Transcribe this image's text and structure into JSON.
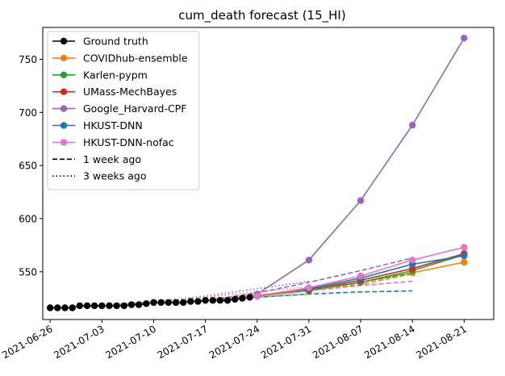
{
  "chart_data": {
    "type": "line",
    "title": "cum_death forecast (15_HI)",
    "xlabel": "",
    "ylabel": "",
    "x_ticks": [
      "2021-06-26",
      "2021-07-03",
      "2021-07-10",
      "2021-07-17",
      "2021-07-24",
      "2021-07-31",
      "2021-08-07",
      "2021-08-14",
      "2021-08-21"
    ],
    "y_ticks": [
      550,
      600,
      650,
      700,
      750
    ],
    "xlim": [
      "2021-06-25",
      "2021-08-25"
    ],
    "ylim": [
      505,
      780
    ],
    "legend_position": "upper-left",
    "grid": false,
    "series": [
      {
        "name": "Ground truth",
        "color": "#000000",
        "style": "solid",
        "marker": true,
        "points": [
          [
            "2021-06-26",
            516
          ],
          [
            "2021-06-27",
            516
          ],
          [
            "2021-06-28",
            516
          ],
          [
            "2021-06-29",
            516
          ],
          [
            "2021-06-30",
            518
          ],
          [
            "2021-07-01",
            518
          ],
          [
            "2021-07-02",
            518
          ],
          [
            "2021-07-03",
            518
          ],
          [
            "2021-07-04",
            518
          ],
          [
            "2021-07-05",
            518
          ],
          [
            "2021-07-06",
            518
          ],
          [
            "2021-07-07",
            519
          ],
          [
            "2021-07-08",
            519
          ],
          [
            "2021-07-09",
            520
          ],
          [
            "2021-07-10",
            521
          ],
          [
            "2021-07-11",
            521
          ],
          [
            "2021-07-12",
            521
          ],
          [
            "2021-07-13",
            521
          ],
          [
            "2021-07-14",
            521
          ],
          [
            "2021-07-15",
            522
          ],
          [
            "2021-07-16",
            522
          ],
          [
            "2021-07-17",
            523
          ],
          [
            "2021-07-18",
            523
          ],
          [
            "2021-07-19",
            523
          ],
          [
            "2021-07-20",
            523
          ],
          [
            "2021-07-21",
            524
          ],
          [
            "2021-07-22",
            525
          ],
          [
            "2021-07-23",
            526
          ],
          [
            "2021-07-24",
            527
          ]
        ]
      },
      {
        "name": "COVIDhub-ensemble",
        "color": "#ff7f0e",
        "style": "solid",
        "marker": true,
        "points": [
          [
            "2021-07-24",
            527
          ],
          [
            "2021-07-31",
            533
          ],
          [
            "2021-08-07",
            540
          ],
          [
            "2021-08-14",
            549
          ],
          [
            "2021-08-21",
            559
          ]
        ]
      },
      {
        "name": "Karlen-pypm",
        "color": "#2ca02c",
        "style": "solid",
        "marker": true,
        "points": [
          [
            "2021-07-24",
            527
          ],
          [
            "2021-07-31",
            532
          ],
          [
            "2021-08-07",
            540
          ],
          [
            "2021-08-14",
            551
          ],
          [
            "2021-08-21",
            566
          ]
        ]
      },
      {
        "name": "UMass-MechBayes",
        "color": "#d62728",
        "style": "solid",
        "marker": true,
        "points": [
          [
            "2021-07-24",
            527
          ],
          [
            "2021-07-31",
            533
          ],
          [
            "2021-08-07",
            542
          ],
          [
            "2021-08-14",
            553
          ],
          [
            "2021-08-21",
            567
          ]
        ]
      },
      {
        "name": "Google_Harvard-CPF",
        "color": "#9467bd",
        "style": "solid",
        "marker": true,
        "points": [
          [
            "2021-07-24",
            529
          ],
          [
            "2021-07-31",
            561
          ],
          [
            "2021-08-07",
            617
          ],
          [
            "2021-08-14",
            688
          ],
          [
            "2021-08-21",
            770
          ]
        ]
      },
      {
        "name": "HKUST-DNN",
        "color": "#1f77b4",
        "style": "solid",
        "marker": true,
        "points": [
          [
            "2021-07-24",
            527
          ],
          [
            "2021-07-31",
            534
          ],
          [
            "2021-08-07",
            544
          ],
          [
            "2021-08-14",
            557
          ],
          [
            "2021-08-21",
            565
          ]
        ]
      },
      {
        "name": "HKUST-DNN-nofac",
        "color": "#e377c2",
        "style": "solid",
        "marker": true,
        "points": [
          [
            "2021-07-24",
            527
          ],
          [
            "2021-07-31",
            535
          ],
          [
            "2021-08-07",
            546
          ],
          [
            "2021-08-14",
            561
          ],
          [
            "2021-08-21",
            573
          ]
        ]
      },
      {
        "name": "",
        "color": "#ff7f0e",
        "style": "dashed",
        "marker": false,
        "points": [
          [
            "2021-07-17",
            523
          ],
          [
            "2021-07-24",
            528
          ],
          [
            "2021-07-31",
            533
          ],
          [
            "2021-08-07",
            538
          ],
          [
            "2021-08-14",
            548
          ]
        ]
      },
      {
        "name": "",
        "color": "#2ca02c",
        "style": "dashed",
        "marker": false,
        "points": [
          [
            "2021-07-17",
            523
          ],
          [
            "2021-07-24",
            527
          ],
          [
            "2021-07-31",
            533
          ],
          [
            "2021-08-07",
            540
          ],
          [
            "2021-08-14",
            549
          ]
        ]
      },
      {
        "name": "",
        "color": "#1f77b4",
        "style": "dashed",
        "marker": false,
        "points": [
          [
            "2021-07-17",
            523
          ],
          [
            "2021-07-24",
            526
          ],
          [
            "2021-07-31",
            529
          ],
          [
            "2021-08-07",
            531
          ],
          [
            "2021-08-14",
            532
          ]
        ]
      },
      {
        "name": "",
        "color": "#9467bd",
        "style": "dashed",
        "marker": false,
        "points": [
          [
            "2021-07-17",
            523
          ],
          [
            "2021-07-24",
            530
          ],
          [
            "2021-07-31",
            540
          ],
          [
            "2021-08-07",
            551
          ],
          [
            "2021-08-14",
            563
          ]
        ]
      },
      {
        "name": "",
        "color": "#e377c2",
        "style": "dashed",
        "marker": false,
        "points": [
          [
            "2021-07-17",
            523
          ],
          [
            "2021-07-24",
            527
          ],
          [
            "2021-07-31",
            532
          ],
          [
            "2021-08-07",
            537
          ],
          [
            "2021-08-14",
            541
          ]
        ]
      },
      {
        "name": "",
        "color": "#9467bd",
        "style": "dotted",
        "marker": false,
        "points": [
          [
            "2021-07-03",
            518
          ],
          [
            "2021-07-10",
            522
          ],
          [
            "2021-07-17",
            527
          ],
          [
            "2021-07-24",
            534
          ],
          [
            "2021-07-31",
            541
          ]
        ]
      },
      {
        "name": "",
        "color": "#ff7f0e",
        "style": "dotted",
        "marker": false,
        "points": [
          [
            "2021-07-03",
            518
          ],
          [
            "2021-07-10",
            521
          ],
          [
            "2021-07-17",
            524
          ],
          [
            "2021-07-24",
            528
          ],
          [
            "2021-07-31",
            532
          ]
        ]
      },
      {
        "name": "",
        "color": "#2ca02c",
        "style": "dotted",
        "marker": false,
        "points": [
          [
            "2021-07-03",
            518
          ],
          [
            "2021-07-10",
            521
          ],
          [
            "2021-07-17",
            523
          ],
          [
            "2021-07-24",
            526
          ],
          [
            "2021-07-31",
            529
          ]
        ]
      },
      {
        "name": "",
        "color": "#e377c2",
        "style": "dotted",
        "marker": false,
        "points": [
          [
            "2021-07-03",
            518
          ],
          [
            "2021-07-10",
            522
          ],
          [
            "2021-07-17",
            526
          ],
          [
            "2021-07-24",
            531
          ],
          [
            "2021-07-31",
            536
          ]
        ]
      }
    ],
    "legend": [
      {
        "label": "Ground truth",
        "color": "#000000",
        "style": "solid",
        "marker": true
      },
      {
        "label": "COVIDhub-ensemble",
        "color": "#ff7f0e",
        "style": "solid",
        "marker": true
      },
      {
        "label": "Karlen-pypm",
        "color": "#2ca02c",
        "style": "solid",
        "marker": true
      },
      {
        "label": "UMass-MechBayes",
        "color": "#d62728",
        "style": "solid",
        "marker": true
      },
      {
        "label": "Google_Harvard-CPF",
        "color": "#9467bd",
        "style": "solid",
        "marker": true
      },
      {
        "label": "HKUST-DNN",
        "color": "#1f77b4",
        "style": "solid",
        "marker": true
      },
      {
        "label": "HKUST-DNN-nofac",
        "color": "#e377c2",
        "style": "solid",
        "marker": true
      },
      {
        "label": "1 week ago",
        "color": "#000000",
        "style": "dashed",
        "marker": false
      },
      {
        "label": "3 weeks ago",
        "color": "#000000",
        "style": "dotted",
        "marker": false
      }
    ]
  }
}
